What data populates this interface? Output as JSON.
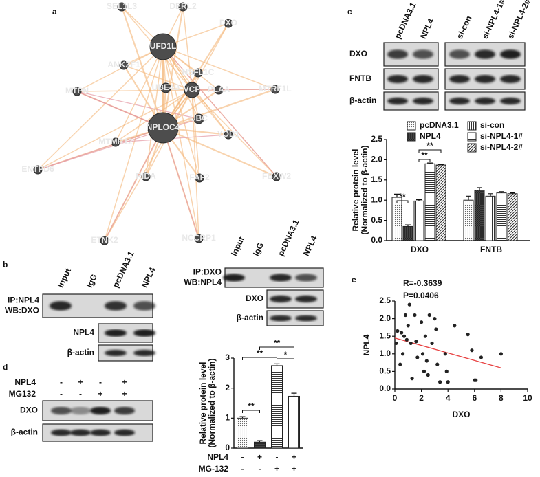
{
  "panel_labels": [
    "a",
    "b",
    "c",
    "d",
    "e"
  ],
  "network": {
    "nodes": [
      "SEL1L3",
      "DERL2",
      "DXO",
      "UFD1L",
      "ANKZF1",
      "NSFL1C",
      "MTPN",
      "UBE4B",
      "VCP",
      "PLAA",
      "MTRF1L",
      "NPLOC4",
      "UBC",
      "YOD1",
      "MTMR12",
      "ENTPD6",
      "RIDA",
      "FAF2",
      "FBXW2",
      "ETNK2",
      "NCCRP1"
    ]
  },
  "blots": {
    "b_left": {
      "lanes": [
        "Input",
        "IgG",
        "pcDNA3.1",
        "NPL4"
      ],
      "rows": [
        [
          "IP:NPL4",
          "WB:DXO"
        ],
        [
          "NPL4"
        ],
        [
          "β-actin"
        ]
      ]
    },
    "b_right": {
      "lanes": [
        "Input",
        "IgG",
        "pcDNA3.1",
        "NPL4"
      ],
      "rows": [
        [
          "IP:DXO",
          "WB:NPL4"
        ],
        [
          "DXO"
        ],
        [
          "β-actin"
        ]
      ]
    },
    "c": {
      "lanes": [
        "pcDNA3.1",
        "NPL4",
        "si-con",
        "si-NPL4-1#",
        "si-NPL4-2#"
      ],
      "rows": [
        [
          "DXO"
        ],
        [
          "FNTB"
        ],
        [
          "β-actin"
        ]
      ]
    },
    "d": {
      "conditions": [
        {
          "name": "NPL4",
          "signs": [
            "-",
            "+",
            "-",
            "+"
          ]
        },
        {
          "name": "MG132",
          "signs": [
            "-",
            "-",
            "+",
            "+"
          ]
        }
      ],
      "rows": [
        [
          "DXO"
        ],
        [
          "β-actin"
        ]
      ]
    }
  },
  "chart_data": [
    {
      "type": "bar",
      "categories": [
        "DXO",
        "FNTB"
      ],
      "series": [
        {
          "name": "pcDNA3.1",
          "pattern": "dots",
          "values": [
            1.07,
            1.0
          ],
          "errors": [
            0.08,
            0.1
          ]
        },
        {
          "name": "NPL4",
          "pattern": "dense",
          "values": [
            0.35,
            1.25
          ],
          "errors": [
            0.04,
            0.06
          ]
        },
        {
          "name": "si-con",
          "pattern": "vertical",
          "values": [
            0.98,
            1.1
          ],
          "errors": [
            0.03,
            0.06
          ]
        },
        {
          "name": "si-NPL4-1#",
          "pattern": "horizontal",
          "values": [
            1.9,
            1.18
          ],
          "errors": [
            0.02,
            0.03
          ]
        },
        {
          "name": "si-NPL4-2#",
          "pattern": "diagonal",
          "values": [
            1.87,
            1.16
          ],
          "errors": [
            0.01,
            0.02
          ]
        }
      ],
      "ylabel": [
        "Relative protein level",
        "(Normalized to β-actin)"
      ],
      "ylim": [
        0,
        2.5
      ],
      "yticks": [
        {
          "value": 0,
          "label": "0.0"
        },
        {
          "value": 0.5,
          "label": "0.5"
        },
        {
          "value": 1,
          "label": "1.0"
        },
        {
          "value": 1.5,
          "label": "1.5"
        },
        {
          "value": 2,
          "label": "2.0"
        },
        {
          "value": 2.5,
          "label": "2.5"
        }
      ],
      "annotations": [
        "**",
        "**",
        "**"
      ]
    },
    {
      "type": "bar",
      "values": [
        1.0,
        0.2,
        2.75,
        1.73
      ],
      "errors": [
        0.05,
        0.05,
        0.06,
        0.1
      ],
      "patterns": [
        "dots",
        "dense",
        "horizontal",
        "vertical"
      ],
      "conditions": [
        {
          "name": "NPL4",
          "signs": [
            "-",
            "+",
            "-",
            "+"
          ]
        },
        {
          "name": "MG-132",
          "signs": [
            "-",
            "-",
            "+",
            "+"
          ]
        }
      ],
      "ylabel": [
        "Relative protein level",
        "(Normalized to β-actin)"
      ],
      "ylim": [
        0,
        3
      ],
      "yticks": [
        0,
        1,
        2,
        3
      ],
      "annotations": [
        "**",
        "**",
        "**",
        "*"
      ]
    },
    {
      "type": "scatter",
      "x": [
        0.1,
        0.2,
        0.4,
        0.5,
        0.6,
        0.7,
        0.8,
        0.9,
        1.0,
        1.1,
        1.2,
        1.3,
        1.5,
        1.6,
        1.7,
        2.0,
        2.1,
        2.2,
        2.3,
        2.4,
        2.5,
        2.6,
        2.8,
        3.0,
        3.1,
        3.2,
        3.4,
        3.8,
        3.9,
        4.0,
        4.5,
        5.5,
        5.8,
        6.0,
        6.1,
        6.5,
        8.0
      ],
      "y": [
        1.3,
        1.65,
        0.7,
        1.6,
        1.0,
        1.5,
        2.1,
        1.4,
        1.8,
        2.4,
        1.3,
        0.3,
        2.1,
        1.35,
        0.9,
        1.9,
        1.0,
        0.5,
        1.5,
        0.8,
        0.4,
        2.1,
        1.3,
        2.0,
        1.7,
        0.7,
        0.2,
        1.0,
        0.5,
        0.2,
        1.8,
        1.55,
        1.1,
        0.25,
        0.25,
        0.9,
        1.0
      ],
      "color": "#222222",
      "fit": {
        "x": [
          0,
          8
        ],
        "y": [
          1.45,
          0.6
        ],
        "color": "#e84040"
      },
      "xlabel": "DXO",
      "ylabel": "NPL4",
      "xlim": [
        0,
        10
      ],
      "xticks": [
        0,
        2,
        4,
        6,
        8,
        10
      ],
      "ylim": [
        0,
        2.5
      ],
      "yticks": [
        {
          "value": 0,
          "label": "0.0"
        },
        {
          "value": 0.5,
          "label": "0.5"
        },
        {
          "value": 1,
          "label": "1.0"
        },
        {
          "value": 1.5,
          "label": "1.5"
        },
        {
          "value": 2,
          "label": "2.0"
        },
        {
          "value": 2.5,
          "label": "2.5"
        }
      ],
      "annotations": [
        "R=-0.3639",
        "P=0.0406"
      ]
    }
  ]
}
